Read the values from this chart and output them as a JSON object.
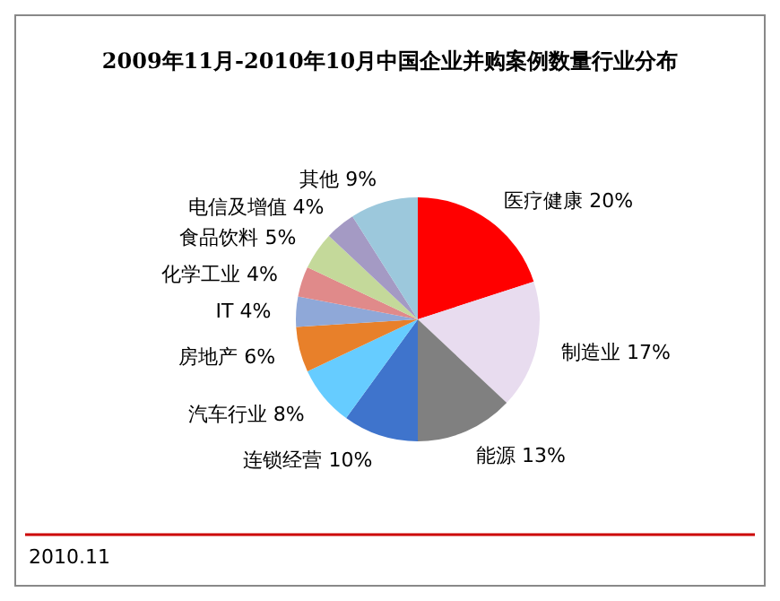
{
  "chart_data": {
    "type": "pie",
    "title": "2009年11月-2010年10月中国企业并购案例数量行业分布",
    "categories": [
      "医疗健康",
      "制造业",
      "能源",
      "连锁经营",
      "汽车行业",
      "房地产",
      "IT",
      "化学工业",
      "食品饮料",
      "电信及增值",
      "其他"
    ],
    "values": [
      20,
      17,
      13,
      10,
      8,
      6,
      4,
      4,
      5,
      4,
      9
    ],
    "value_labels": [
      "20%",
      "17%",
      "13%",
      "10%",
      "8%",
      "6%",
      "4%",
      "4%",
      "5%",
      "4%",
      "9%"
    ],
    "colors": [
      "#ff0000",
      "#e8dcef",
      "#808080",
      "#3f74cc",
      "#66ccff",
      "#e8802a",
      "#8fa8d8",
      "#e08a8a",
      "#c4d99a",
      "#a49ac4",
      "#9cc8dc"
    ],
    "annotations": [
      "2010.11"
    ]
  }
}
